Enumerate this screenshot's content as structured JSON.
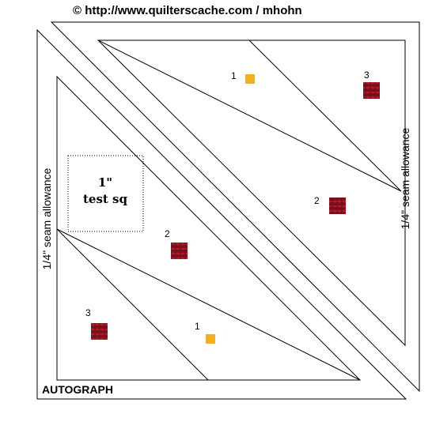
{
  "header": {
    "credit": "© http://www.quilterscache.com / mhohn"
  },
  "seam_labels": [
    "1/4\" seam allowance",
    "1/4\" seam allowance"
  ],
  "test_square": {
    "line1": "1\"",
    "line2": "test sq"
  },
  "footer": {
    "autograph": "AUTOGRAPH"
  },
  "patches": [
    {
      "label": "1"
    },
    {
      "label": "3"
    },
    {
      "label": "2"
    },
    {
      "label": "2"
    },
    {
      "label": "3"
    },
    {
      "label": "1"
    }
  ]
}
